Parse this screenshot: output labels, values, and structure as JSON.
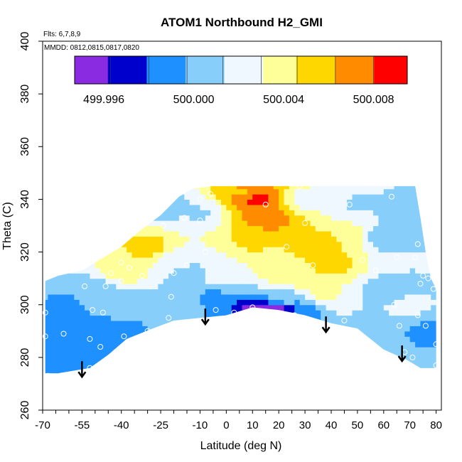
{
  "chart_data": {
    "type": "heatmap",
    "title": "ATOM1 Northbound H2_GMI",
    "notes": [
      "Flts: 6,7,8,9",
      "MMDD: 0812,0815,0817,0820"
    ],
    "xlabel": "Latitude (deg N)",
    "ylabel": "Theta (C)",
    "xlim": [
      -70,
      82
    ],
    "ylim": [
      260,
      400
    ],
    "x_ticks": [
      -70,
      -55,
      -40,
      -25,
      -10,
      0,
      10,
      20,
      30,
      40,
      50,
      60,
      70,
      80
    ],
    "x_minor_step": 5,
    "y_ticks": [
      260,
      280,
      300,
      320,
      340,
      360,
      380,
      400
    ],
    "colorbar": {
      "range": [
        499.9947,
        500.0095
      ],
      "ticks": [
        499.996,
        500.0,
        500.004,
        500.008
      ],
      "tick_labels": [
        "499.996",
        "500.000",
        "500.004",
        "500.008"
      ],
      "colors": [
        "#8a2be2",
        "#0000cd",
        "#1e90ff",
        "#87cefa",
        "#f0f8ff",
        "#ffff99",
        "#ffd700",
        "#ff8c00",
        "#ff0000",
        "#b22222"
      ]
    },
    "colorbar_boundaries": [
      499.9947,
      499.9963,
      499.998,
      499.9997,
      500.0013,
      500.003,
      500.0046,
      500.0063,
      500.008,
      500.0096
    ],
    "coverage": {
      "upper_boundary": [
        [
          -69,
          309
        ],
        [
          -64,
          311
        ],
        [
          -55,
          313
        ],
        [
          -50,
          316
        ],
        [
          -40,
          322
        ],
        [
          -33,
          328
        ],
        [
          -25,
          334
        ],
        [
          -18,
          341
        ],
        [
          -13,
          344
        ],
        [
          -5,
          345
        ],
        [
          5,
          345
        ],
        [
          15,
          345
        ],
        [
          30,
          345
        ],
        [
          50,
          345
        ],
        [
          72,
          345
        ],
        [
          74,
          333
        ],
        [
          76,
          320
        ],
        [
          78,
          310
        ],
        [
          80,
          306
        ],
        [
          80,
          276
        ]
      ],
      "lower_boundary": [
        [
          80,
          276
        ],
        [
          74,
          276
        ],
        [
          69,
          279
        ],
        [
          60,
          283
        ],
        [
          50,
          291
        ],
        [
          40,
          293
        ],
        [
          30,
          296
        ],
        [
          20,
          298
        ],
        [
          10,
          299
        ],
        [
          0,
          296
        ],
        [
          -10,
          295
        ],
        [
          -20,
          294
        ],
        [
          -28,
          291
        ],
        [
          -38,
          287
        ],
        [
          -45,
          281
        ],
        [
          -52,
          276
        ],
        [
          -58,
          275
        ],
        [
          -64,
          274
        ],
        [
          -69,
          274
        ]
      ]
    },
    "field_anchors": [
      {
        "lat": 12,
        "theta": 340,
        "value": 500.0087
      },
      {
        "lat": 16,
        "theta": 333,
        "value": 500.0075
      },
      {
        "lat": 7,
        "theta": 342,
        "value": 500.0062
      },
      {
        "lat": 10,
        "theta": 325,
        "value": 500.005
      },
      {
        "lat": 35,
        "theta": 322,
        "value": 500.0058
      },
      {
        "lat": 40,
        "theta": 315,
        "value": 500.0052
      },
      {
        "lat": 46,
        "theta": 325,
        "value": 500.0045
      },
      {
        "lat": 30,
        "theta": 310,
        "value": 500.0044
      },
      {
        "lat": 38,
        "theta": 304,
        "value": 500.0036
      },
      {
        "lat": 20,
        "theta": 312,
        "value": 500.0038
      },
      {
        "lat": 0,
        "theta": 312,
        "value": 500.003
      },
      {
        "lat": -30,
        "theta": 322,
        "value": 500.0054
      },
      {
        "lat": -38,
        "theta": 313,
        "value": 500.0042
      },
      {
        "lat": -20,
        "theta": 316,
        "value": 500.0022
      },
      {
        "lat": -15,
        "theta": 312,
        "value": 500.0005
      },
      {
        "lat": -5,
        "theta": 303,
        "value": 499.9995
      },
      {
        "lat": 12,
        "theta": 298,
        "value": 499.9955
      },
      {
        "lat": 20,
        "theta": 298,
        "value": 499.9958
      },
      {
        "lat": 28,
        "theta": 297,
        "value": 499.9983
      },
      {
        "lat": 22,
        "theta": 303,
        "value": 500.001
      },
      {
        "lat": -58,
        "theta": 290,
        "value": 499.9985
      },
      {
        "lat": -60,
        "theta": 300,
        "value": 499.9995
      },
      {
        "lat": -65,
        "theta": 280,
        "value": 499.9988
      },
      {
        "lat": -42,
        "theta": 290,
        "value": 499.9985
      },
      {
        "lat": -50,
        "theta": 305,
        "value": 500.0003
      },
      {
        "lat": -40,
        "theta": 300,
        "value": 500.001
      },
      {
        "lat": -30,
        "theta": 302,
        "value": 500.0013
      },
      {
        "lat": -20,
        "theta": 300,
        "value": 500.0003
      },
      {
        "lat": -10,
        "theta": 335,
        "value": 500.0012
      },
      {
        "lat": -25,
        "theta": 338,
        "value": 500.0002
      },
      {
        "lat": 30,
        "theta": 340,
        "value": 500.0025
      },
      {
        "lat": 50,
        "theta": 338,
        "value": 500.0012
      },
      {
        "lat": 60,
        "theta": 325,
        "value": 500.0003
      },
      {
        "lat": 70,
        "theta": 335,
        "value": 500.0
      },
      {
        "lat": 68,
        "theta": 300,
        "value": 500.0018
      },
      {
        "lat": 62,
        "theta": 305,
        "value": 500.0
      },
      {
        "lat": 75,
        "theta": 290,
        "value": 499.9995
      },
      {
        "lat": 55,
        "theta": 292,
        "value": 500.0003
      },
      {
        "lat": 45,
        "theta": 300,
        "value": 500.0015
      }
    ],
    "samples": [
      [
        -69,
        297
      ],
      [
        -69,
        288
      ],
      [
        -68,
        273
      ],
      [
        -62,
        289
      ],
      [
        -54,
        307
      ],
      [
        -51,
        298
      ],
      [
        -52,
        287
      ],
      [
        -48,
        284
      ],
      [
        -47,
        297
      ],
      [
        -52,
        276
      ],
      [
        -49,
        276
      ],
      [
        -47,
        276
      ],
      [
        -40,
        316
      ],
      [
        -44,
        312
      ],
      [
        -46,
        307
      ],
      [
        -39,
        288
      ],
      [
        -40,
        309
      ],
      [
        -37,
        314
      ],
      [
        -32,
        311
      ],
      [
        -30,
        290
      ],
      [
        -22,
        295
      ],
      [
        -21,
        303
      ],
      [
        -16,
        333
      ],
      [
        -10,
        340
      ],
      [
        -24,
        330
      ],
      [
        -10,
        332
      ],
      [
        -15,
        315
      ],
      [
        -20,
        312
      ],
      [
        -4,
        298
      ],
      [
        -6,
        342
      ],
      [
        -8,
        320
      ],
      [
        3,
        297
      ],
      [
        10,
        299
      ],
      [
        11,
        347
      ],
      [
        15,
        338
      ],
      [
        17,
        348
      ],
      [
        20,
        296
      ],
      [
        23,
        322
      ],
      [
        26,
        296
      ],
      [
        28,
        345
      ],
      [
        30,
        331
      ],
      [
        33,
        315
      ],
      [
        35,
        290
      ],
      [
        45,
        294
      ],
      [
        47,
        338
      ],
      [
        52,
        317
      ],
      [
        57,
        313
      ],
      [
        65,
        318
      ],
      [
        64,
        300
      ],
      [
        66,
        292
      ],
      [
        68,
        278
      ],
      [
        72,
        318
      ],
      [
        73,
        323
      ],
      [
        75,
        311
      ],
      [
        74,
        308
      ],
      [
        71,
        280
      ],
      [
        68,
        282
      ],
      [
        70,
        277
      ],
      [
        73,
        296
      ],
      [
        76,
        292
      ],
      [
        80,
        285
      ],
      [
        80,
        277
      ],
      [
        79,
        306
      ],
      [
        77,
        310
      ],
      [
        63,
        341
      ]
    ],
    "arrows": [
      [
        -55,
        278
      ],
      [
        -8,
        298
      ],
      [
        38,
        295
      ],
      [
        67,
        284
      ]
    ]
  }
}
